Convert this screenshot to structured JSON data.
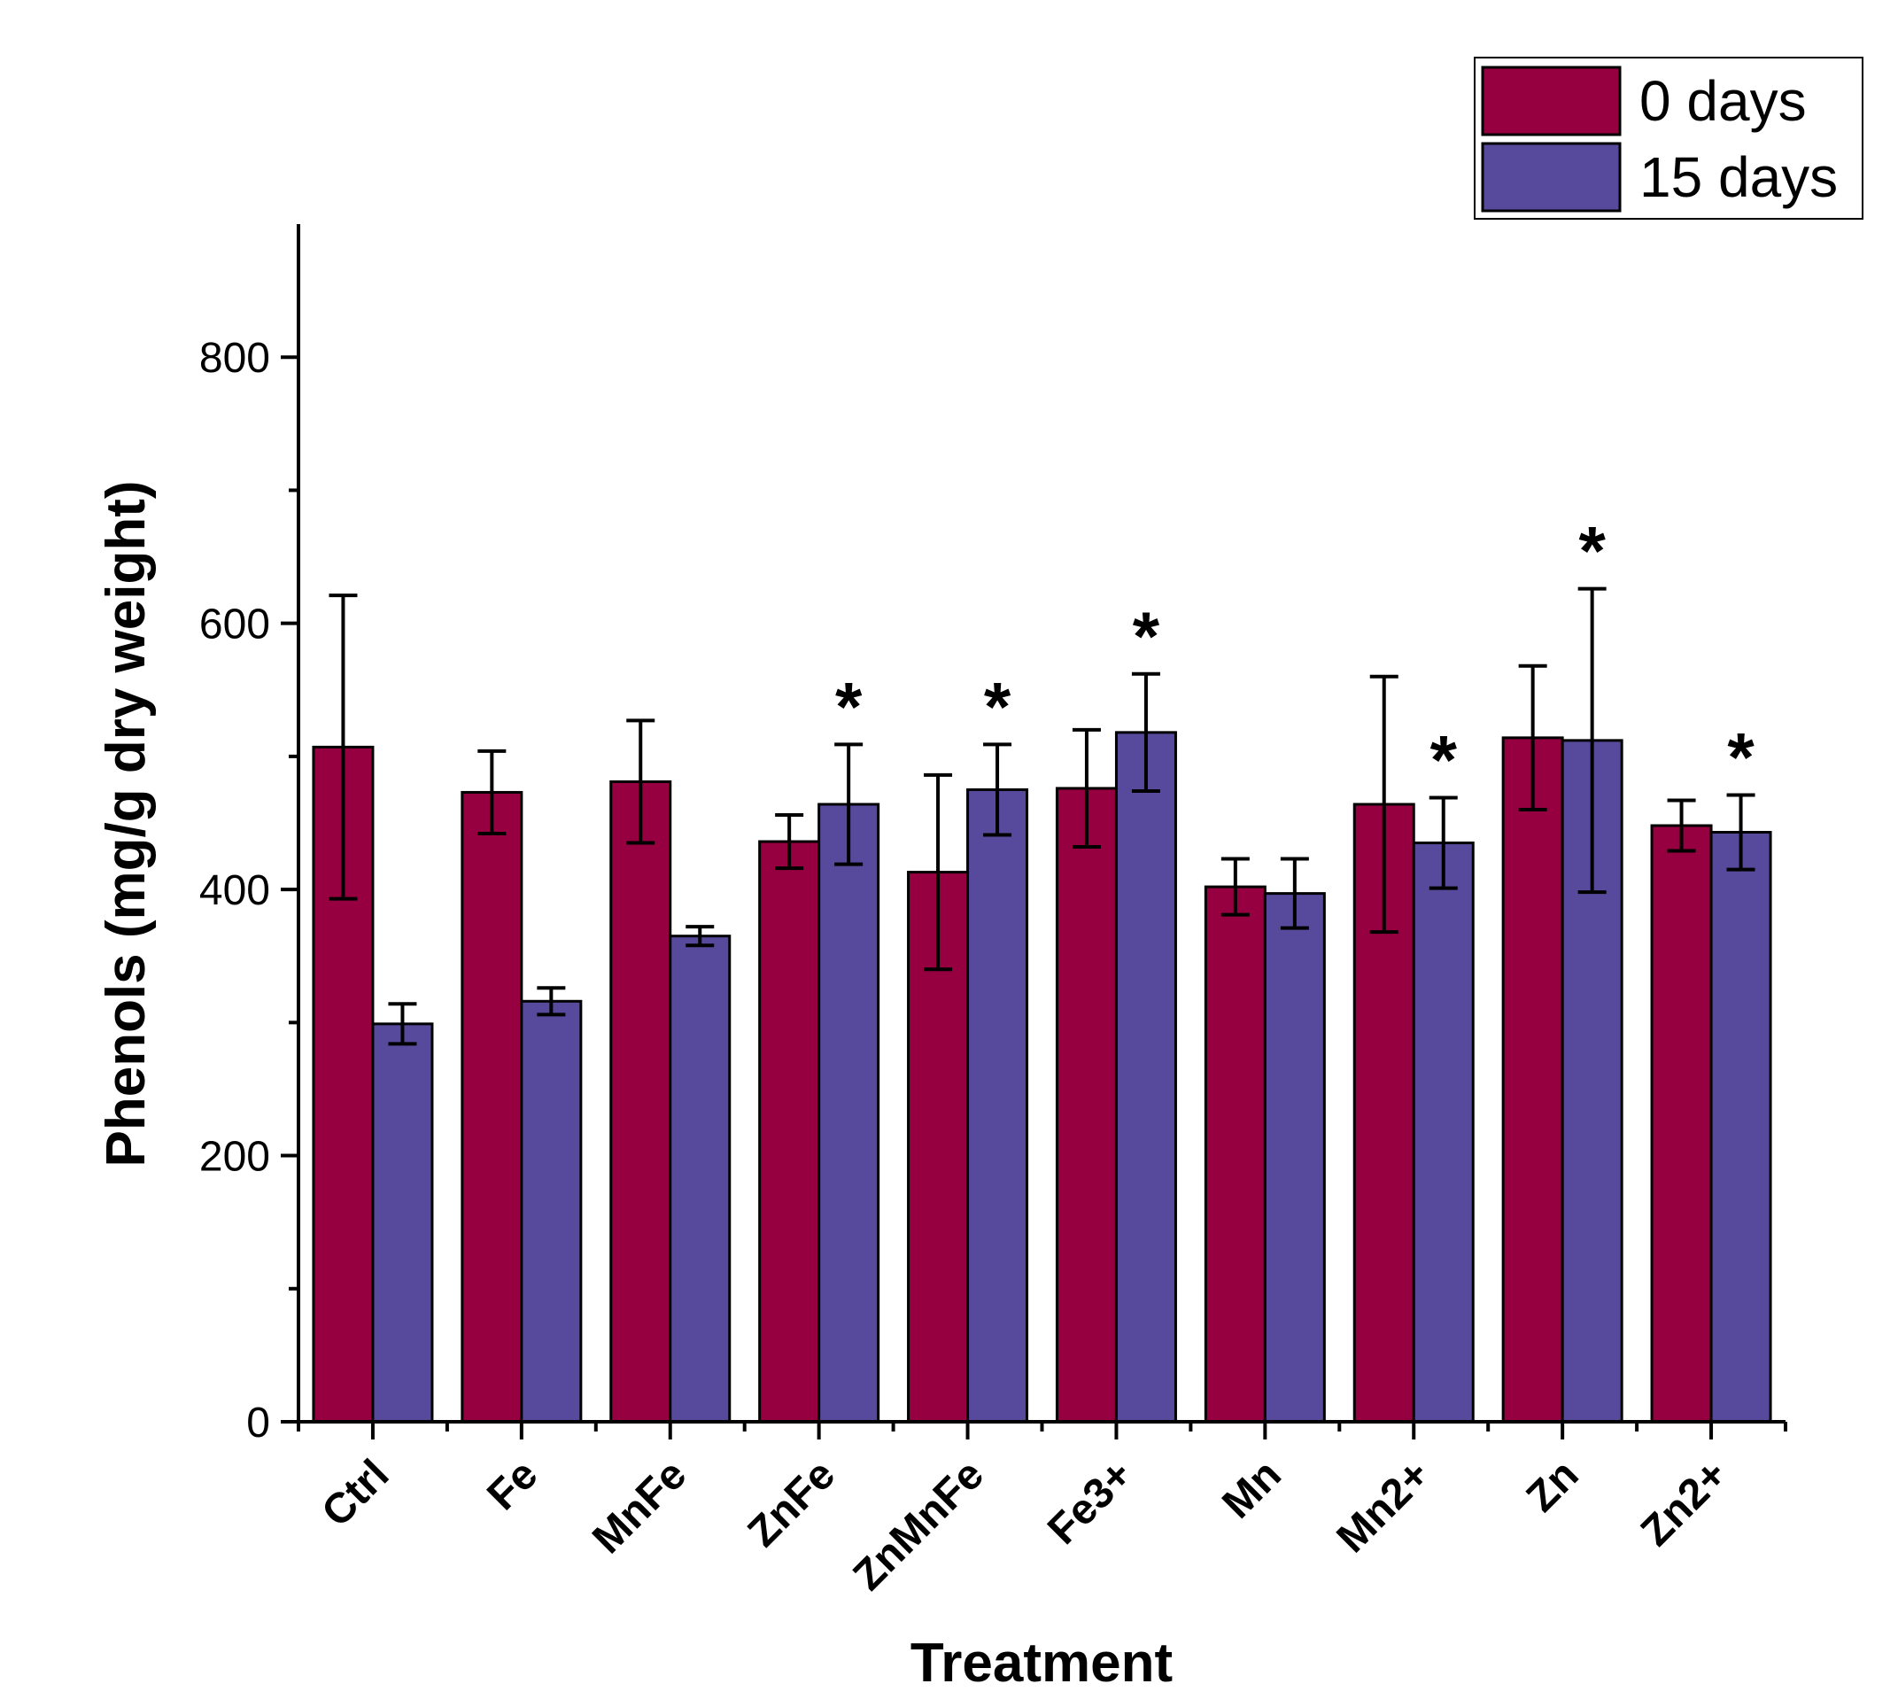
{
  "chart_data": {
    "type": "bar",
    "title": "",
    "xlabel": "Treatment",
    "ylabel": "Phenols (mg/g dry weight)",
    "ylim": [
      0,
      900
    ],
    "yticks": [
      0,
      200,
      400,
      600,
      800
    ],
    "yticks_minor": [
      100,
      300,
      500,
      700
    ],
    "grid": false,
    "legend_position": "top-right",
    "categories": [
      "Ctrl",
      "Fe",
      "MnFe",
      "ZnFe",
      "ZnMnFe",
      "Fe3+",
      "Mn",
      "Mn2+",
      "Zn",
      "Zn2+"
    ],
    "series": [
      {
        "name": "0 days",
        "color": "#960040",
        "values": [
          507,
          473,
          481,
          436,
          413,
          476,
          402,
          464,
          514,
          448
        ],
        "errors": [
          114,
          31,
          46,
          20,
          73,
          44,
          21,
          96,
          54,
          19
        ],
        "significance": [
          "",
          "",
          "",
          "",
          "",
          "",
          "",
          "",
          "",
          ""
        ]
      },
      {
        "name": "15 days",
        "color": "#574a9c",
        "values": [
          299,
          316,
          365,
          464,
          475,
          518,
          397,
          435,
          512,
          443
        ],
        "errors": [
          15,
          10,
          7,
          45,
          34,
          44,
          26,
          34,
          114,
          28
        ],
        "significance": [
          "",
          "",
          "",
          "*",
          "*",
          "*",
          "",
          "*",
          "*",
          "*"
        ]
      }
    ]
  }
}
